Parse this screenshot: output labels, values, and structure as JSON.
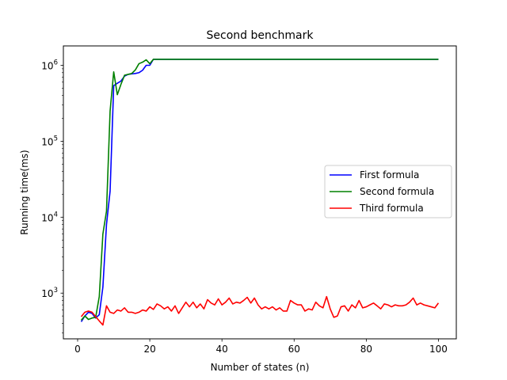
{
  "chart_data": {
    "type": "line",
    "title": "Second benchmark",
    "xlabel": "Number of states (n)",
    "ylabel": "Running time(ms)",
    "xlim": [
      -3.95,
      104.95
    ],
    "ylim": [
      250,
      1800000
    ],
    "yscale": "log",
    "x_ticks": [
      0,
      20,
      40,
      60,
      80,
      100
    ],
    "x_tick_labels": [
      "0",
      "20",
      "40",
      "60",
      "80",
      "100"
    ],
    "y_ticks": [
      1000,
      10000,
      100000,
      1000000
    ],
    "y_tick_labels": [
      {
        "base": "10",
        "exp": "3"
      },
      {
        "base": "10",
        "exp": "4"
      },
      {
        "base": "10",
        "exp": "5"
      },
      {
        "base": "10",
        "exp": "6"
      }
    ],
    "grid": false,
    "legend_position": "center-right",
    "x": [
      1,
      2,
      3,
      4,
      5,
      6,
      7,
      8,
      9,
      10,
      11,
      12,
      13,
      14,
      15,
      16,
      17,
      18,
      19,
      20,
      21,
      22,
      23,
      24,
      25,
      26,
      27,
      28,
      29,
      30,
      31,
      32,
      33,
      34,
      35,
      36,
      37,
      38,
      39,
      40,
      41,
      42,
      43,
      44,
      45,
      46,
      47,
      48,
      49,
      50,
      51,
      52,
      53,
      54,
      55,
      56,
      57,
      58,
      59,
      60,
      61,
      62,
      63,
      64,
      65,
      66,
      67,
      68,
      69,
      70,
      71,
      72,
      73,
      74,
      75,
      76,
      77,
      78,
      79,
      80,
      81,
      82,
      83,
      84,
      85,
      86,
      87,
      88,
      89,
      90,
      91,
      92,
      93,
      94,
      95,
      96,
      97,
      98,
      99,
      100
    ],
    "series": [
      {
        "name": "First formula",
        "color": "#0000ff",
        "values": [
          420,
          500,
          560,
          540,
          470,
          520,
          1200,
          8000,
          22000,
          540000,
          580000,
          620000,
          720000,
          760000,
          770000,
          780000,
          800000,
          860000,
          1000000,
          1000000,
          1200000,
          1200000,
          1200000,
          1200000,
          1200000,
          1200000,
          1200000,
          1200000,
          1200000,
          1200000,
          1200000,
          1200000,
          1200000,
          1200000,
          1200000,
          1200000,
          1200000,
          1200000,
          1200000,
          1200000,
          1200000,
          1200000,
          1200000,
          1200000,
          1200000,
          1200000,
          1200000,
          1200000,
          1200000,
          1200000,
          1200000,
          1200000,
          1200000,
          1200000,
          1200000,
          1200000,
          1200000,
          1200000,
          1200000,
          1200000,
          1200000,
          1200000,
          1200000,
          1200000,
          1200000,
          1200000,
          1200000,
          1200000,
          1200000,
          1200000,
          1200000,
          1200000,
          1200000,
          1200000,
          1200000,
          1200000,
          1200000,
          1200000,
          1200000,
          1200000,
          1200000,
          1200000,
          1200000,
          1200000,
          1200000,
          1200000,
          1200000,
          1200000,
          1200000,
          1200000,
          1200000,
          1200000,
          1200000,
          1200000,
          1200000,
          1200000,
          1200000,
          1200000,
          1200000,
          1200000
        ]
      },
      {
        "name": "Second formula",
        "color": "#008000",
        "values": [
          440,
          500,
          450,
          470,
          480,
          900,
          6000,
          12000,
          250000,
          820000,
          410000,
          560000,
          740000,
          760000,
          780000,
          870000,
          1050000,
          1100000,
          1180000,
          1050000,
          1200000,
          1200000,
          1200000,
          1200000,
          1200000,
          1200000,
          1200000,
          1200000,
          1200000,
          1200000,
          1200000,
          1200000,
          1200000,
          1200000,
          1200000,
          1200000,
          1200000,
          1200000,
          1200000,
          1200000,
          1200000,
          1200000,
          1200000,
          1200000,
          1200000,
          1200000,
          1200000,
          1200000,
          1200000,
          1200000,
          1200000,
          1200000,
          1200000,
          1200000,
          1200000,
          1200000,
          1200000,
          1200000,
          1200000,
          1200000,
          1200000,
          1200000,
          1200000,
          1200000,
          1200000,
          1200000,
          1200000,
          1200000,
          1200000,
          1200000,
          1200000,
          1200000,
          1200000,
          1200000,
          1200000,
          1200000,
          1200000,
          1200000,
          1200000,
          1200000,
          1200000,
          1200000,
          1200000,
          1200000,
          1200000,
          1200000,
          1200000,
          1200000,
          1200000,
          1200000,
          1200000,
          1200000,
          1200000,
          1200000,
          1200000,
          1200000,
          1200000,
          1200000,
          1200000,
          1200000
        ]
      },
      {
        "name": "Third formula",
        "color": "#ff0000",
        "values": [
          490,
          560,
          580,
          560,
          490,
          430,
          380,
          680,
          560,
          540,
          600,
          580,
          640,
          560,
          560,
          540,
          560,
          600,
          580,
          660,
          610,
          720,
          680,
          620,
          660,
          580,
          680,
          540,
          640,
          760,
          660,
          760,
          640,
          720,
          620,
          820,
          740,
          700,
          840,
          700,
          760,
          860,
          720,
          760,
          740,
          800,
          880,
          740,
          860,
          700,
          620,
          660,
          620,
          660,
          600,
          640,
          580,
          580,
          800,
          740,
          700,
          700,
          580,
          620,
          600,
          760,
          680,
          640,
          900,
          620,
          480,
          500,
          660,
          680,
          580,
          700,
          640,
          800,
          640,
          660,
          700,
          740,
          680,
          620,
          720,
          700,
          660,
          700,
          680,
          680,
          700,
          760,
          860,
          700,
          740,
          700,
          680,
          660,
          640,
          740
        ]
      }
    ]
  }
}
